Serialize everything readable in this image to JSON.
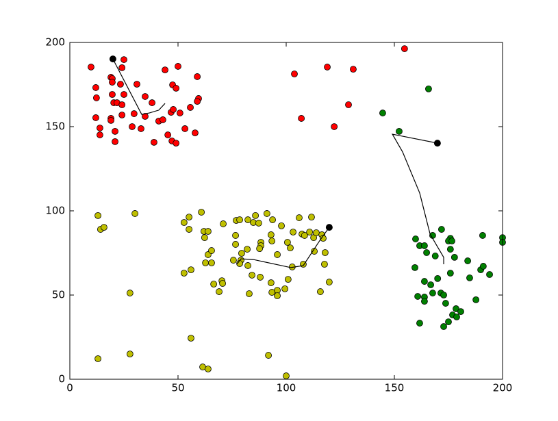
{
  "chart_data": {
    "type": "scatter",
    "xlim": [
      0,
      200
    ],
    "ylim": [
      0,
      200
    ],
    "xticks": [
      0,
      50,
      100,
      150,
      200
    ],
    "yticks": [
      0,
      50,
      100,
      150,
      200
    ],
    "series": [
      {
        "color": "#ff0000",
        "x": [
          9.8,
          12.0,
          12.3,
          12.0,
          13.9,
          13.9,
          19.0,
          19.6,
          19.6,
          19.6,
          20.3,
          19.0,
          19.0,
          20.9,
          20.9,
          21.8,
          23.4,
          24.1,
          24.1,
          24.1,
          25.0,
          25.0,
          31.0,
          28.8,
          29.7,
          32.9,
          34.8,
          34.8,
          38.0,
          38.9,
          41.1,
          43.0,
          44.0,
          45.3,
          46.8,
          47.2,
          47.5,
          47.8,
          49.1,
          50.0,
          49.1,
          50.9,
          53.2,
          55.7,
          57.9,
          58.9,
          59.5,
          58.9,
          103.8,
          107.0,
          119.0,
          122.2,
          128.8,
          131.0,
          154.7
        ],
        "values": [
          185.4,
          173.2,
          167.1,
          155.3,
          149.2,
          145.1,
          179.3,
          178.5,
          176.4,
          169.1,
          164.2,
          154.9,
          153.7,
          141.1,
          147.2,
          164.2,
          175.2,
          185.0,
          163.0,
          156.9,
          169.1,
          189.8,
          175.2,
          150.0,
          157.7,
          148.8,
          167.9,
          156.1,
          164.2,
          140.7,
          153.3,
          154.1,
          183.7,
          145.1,
          158.5,
          141.5,
          174.8,
          160.2,
          172.8,
          185.8,
          140.2,
          158.1,
          148.8,
          161.4,
          146.3,
          179.7,
          166.7,
          165.0,
          181.3,
          154.9,
          185.4,
          150.0,
          163.0,
          184.1,
          196.3
        ]
      },
      {
        "color": "#bfbf00",
        "x": [
          13.0,
          14.2,
          15.8,
          30.1,
          27.8,
          27.8,
          13.0,
          56.0,
          61.4,
          63.9,
          91.8,
          100,
          52.8,
          55.1,
          55.1,
          60.8,
          62.0,
          63.9,
          62.3,
          63.9,
          65.5,
          65.5,
          62.7,
          56.0,
          52.8,
          66.5,
          69.0,
          70.3,
          70.6,
          70.9,
          76.9,
          78.5,
          76.6,
          76.6,
          79.4,
          82.0,
          82.3,
          79.1,
          75.6,
          78.5,
          82.9,
          84.2,
          84.8,
          87.3,
          85.8,
          82.3,
          88.3,
          88.3,
          88.0,
          87.7,
          91.1,
          93.7,
          93.0,
          93.4,
          95.9,
          97.8,
          93.0,
          93.4,
          95.9,
          95.9,
          99.4,
          100.6,
          100.9,
          101.9,
          103.2,
          102.8,
          106.0,
          107.3,
          108.5,
          107.9,
          110.8,
          111.7,
          112.7,
          113.9,
          113.0,
          116.5,
          118.0,
          117.7,
          115.8,
          119.9,
          117.1
        ],
        "values": [
          97.2,
          89.0,
          90.2,
          98.4,
          51.2,
          15.0,
          12.2,
          24.4,
          7.3,
          6.1,
          14.2,
          2.0,
          93.1,
          96.3,
          89.0,
          99.2,
          87.8,
          87.8,
          84.1,
          74.0,
          76.4,
          69.1,
          69.1,
          65.0,
          63.0,
          56.5,
          52.0,
          58.5,
          56.9,
          92.3,
          94.3,
          94.7,
          85.4,
          80.1,
          74.8,
          77.2,
          67.5,
          70.7,
          70.7,
          68.7,
          50.8,
          61.8,
          93.1,
          92.7,
          97.2,
          94.7,
          81.3,
          79.3,
          60.6,
          77.6,
          98.4,
          94.7,
          85.8,
          82.1,
          74.0,
          91.1,
          57.3,
          51.6,
          52.8,
          49.6,
          53.7,
          81.3,
          59.3,
          78.0,
          87.4,
          66.7,
          95.9,
          86.2,
          85.4,
          68.3,
          87.4,
          96.3,
          84.1,
          87.0,
          76.0,
          85.8,
          75.2,
          68.3,
          52.0,
          57.7,
          83.7
        ]
      },
      {
        "color": "#008000",
        "x": [
          144.6,
          152.2,
          165.8,
          159.8,
          161.7,
          163.9,
          167.7,
          171.8,
          164.9,
          168.9,
          159.5,
          163.9,
          166.8,
          170.0,
          160.8,
          163.9,
          163.9,
          167.7,
          171.5,
          172.8,
          173.7,
          161.7,
          172.8,
          175.0,
          175.9,
          175.0,
          176.6,
          175.9,
          177.8,
          175.9,
          176.9,
          178.8,
          178.5,
          180.7,
          183.9,
          184.8,
          187.7,
          190.8,
          189.9,
          191.1,
          194.0,
          200,
          200
        ],
        "values": [
          158.1,
          147.2,
          172.4,
          83.3,
          79.3,
          79.3,
          85.4,
          89.0,
          75.2,
          73.2,
          66.3,
          58.1,
          56.1,
          59.8,
          49.2,
          48.8,
          46.3,
          51.2,
          51.2,
          50.0,
          45.1,
          33.3,
          31.3,
          34.1,
          83.7,
          82.1,
          82.1,
          77.2,
          72.4,
          63.0,
          38.2,
          37.0,
          41.9,
          40.2,
          70.3,
          60.2,
          47.2,
          85.4,
          65.0,
          67.1,
          62.2,
          84.1,
          81.3
        ]
      }
    ],
    "paths": [
      {
        "color": "#000000",
        "x": [
          19.9,
          33.2,
          36.7,
          41.1,
          44.0
        ],
        "values": [
          190.2,
          157.3,
          158.1,
          159.8,
          163.8
        ]
      },
      {
        "color": "#000000",
        "x": [
          169.9,
          149.1,
          153.8,
          161.7,
          166.5,
          172.8,
          172.8
        ],
        "values": [
          140.2,
          145.5,
          135.0,
          110.6,
          86.2,
          72.4,
          68.3
        ]
      },
      {
        "color": "#000000",
        "x": [
          119.9,
          115.8,
          107.9,
          102.2,
          84.8,
          79.1,
          77.2
        ],
        "values": [
          90.2,
          82.9,
          67.5,
          66.3,
          71.1,
          71.5,
          68.3
        ]
      }
    ]
  }
}
